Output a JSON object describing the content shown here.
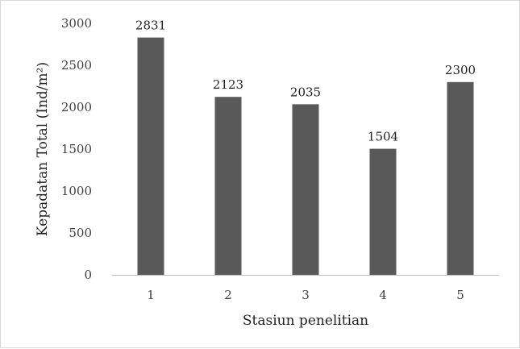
{
  "chart_data": {
    "type": "bar",
    "categories": [
      "1",
      "2",
      "3",
      "4",
      "5"
    ],
    "values": [
      2831,
      2123,
      2035,
      1504,
      2300
    ],
    "data_labels": [
      "2831",
      "2123",
      "2035",
      "1504",
      "2300"
    ],
    "xlabel": "Stasiun penelitian",
    "ylabel": "Kepadatan Total (Ind/m²)",
    "ylim": [
      0,
      3000
    ],
    "yticks": [
      0,
      500,
      1000,
      1500,
      2000,
      2500,
      3000
    ],
    "grid": false,
    "legend": "none",
    "bar_color": "#595959"
  }
}
